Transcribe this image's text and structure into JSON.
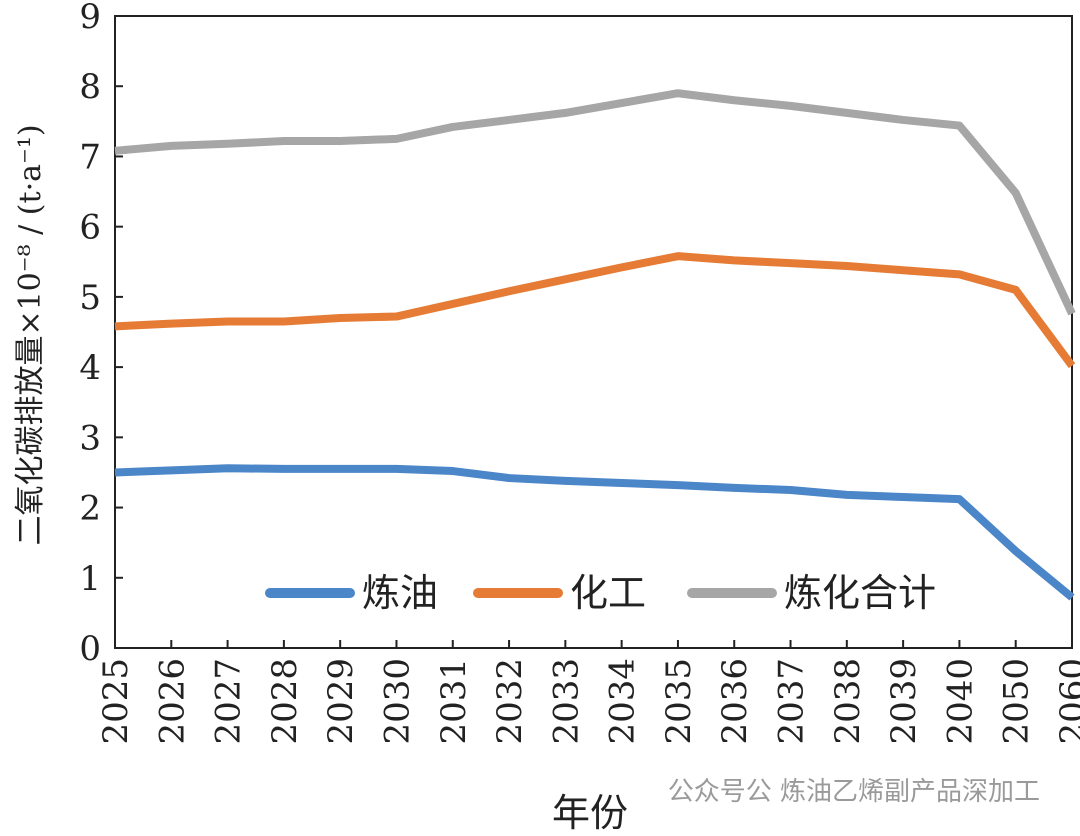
{
  "chart_data": {
    "type": "line",
    "categories": [
      "2025",
      "2026",
      "2027",
      "2028",
      "2029",
      "2030",
      "2031",
      "2032",
      "2033",
      "2034",
      "2035",
      "2036",
      "2037",
      "2038",
      "2039",
      "2040",
      "2050",
      "2060"
    ],
    "series": [
      {
        "name": "炼油",
        "color": "#4a86c8",
        "values": [
          2.5,
          2.53,
          2.56,
          2.55,
          2.55,
          2.55,
          2.52,
          2.42,
          2.38,
          2.35,
          2.32,
          2.28,
          2.25,
          2.18,
          2.15,
          2.12,
          1.38,
          0.72
        ]
      },
      {
        "name": "化工",
        "color": "#e57b34",
        "values": [
          4.58,
          4.62,
          4.65,
          4.65,
          4.7,
          4.72,
          4.9,
          5.08,
          5.25,
          5.42,
          5.58,
          5.52,
          5.48,
          5.44,
          5.38,
          5.32,
          5.1,
          4.02
        ]
      },
      {
        "name": "炼化合计",
        "color": "#a6a6a6",
        "values": [
          7.08,
          7.15,
          7.18,
          7.22,
          7.22,
          7.25,
          7.42,
          7.52,
          7.62,
          7.76,
          7.9,
          7.8,
          7.72,
          7.62,
          7.52,
          7.44,
          6.48,
          4.76
        ]
      }
    ],
    "xlabel": "年份",
    "ylabel": "二氧化碳排放量×10⁻⁸ / (t·a⁻¹)",
    "ylim": [
      0,
      9
    ],
    "yticks": [
      "0",
      "1",
      "2",
      "3",
      "4",
      "5",
      "6",
      "7",
      "8",
      "9"
    ],
    "grid": false,
    "legend_position": "bottom-center"
  },
  "watermark": "公众号公 炼油乙烯副产品深加工"
}
